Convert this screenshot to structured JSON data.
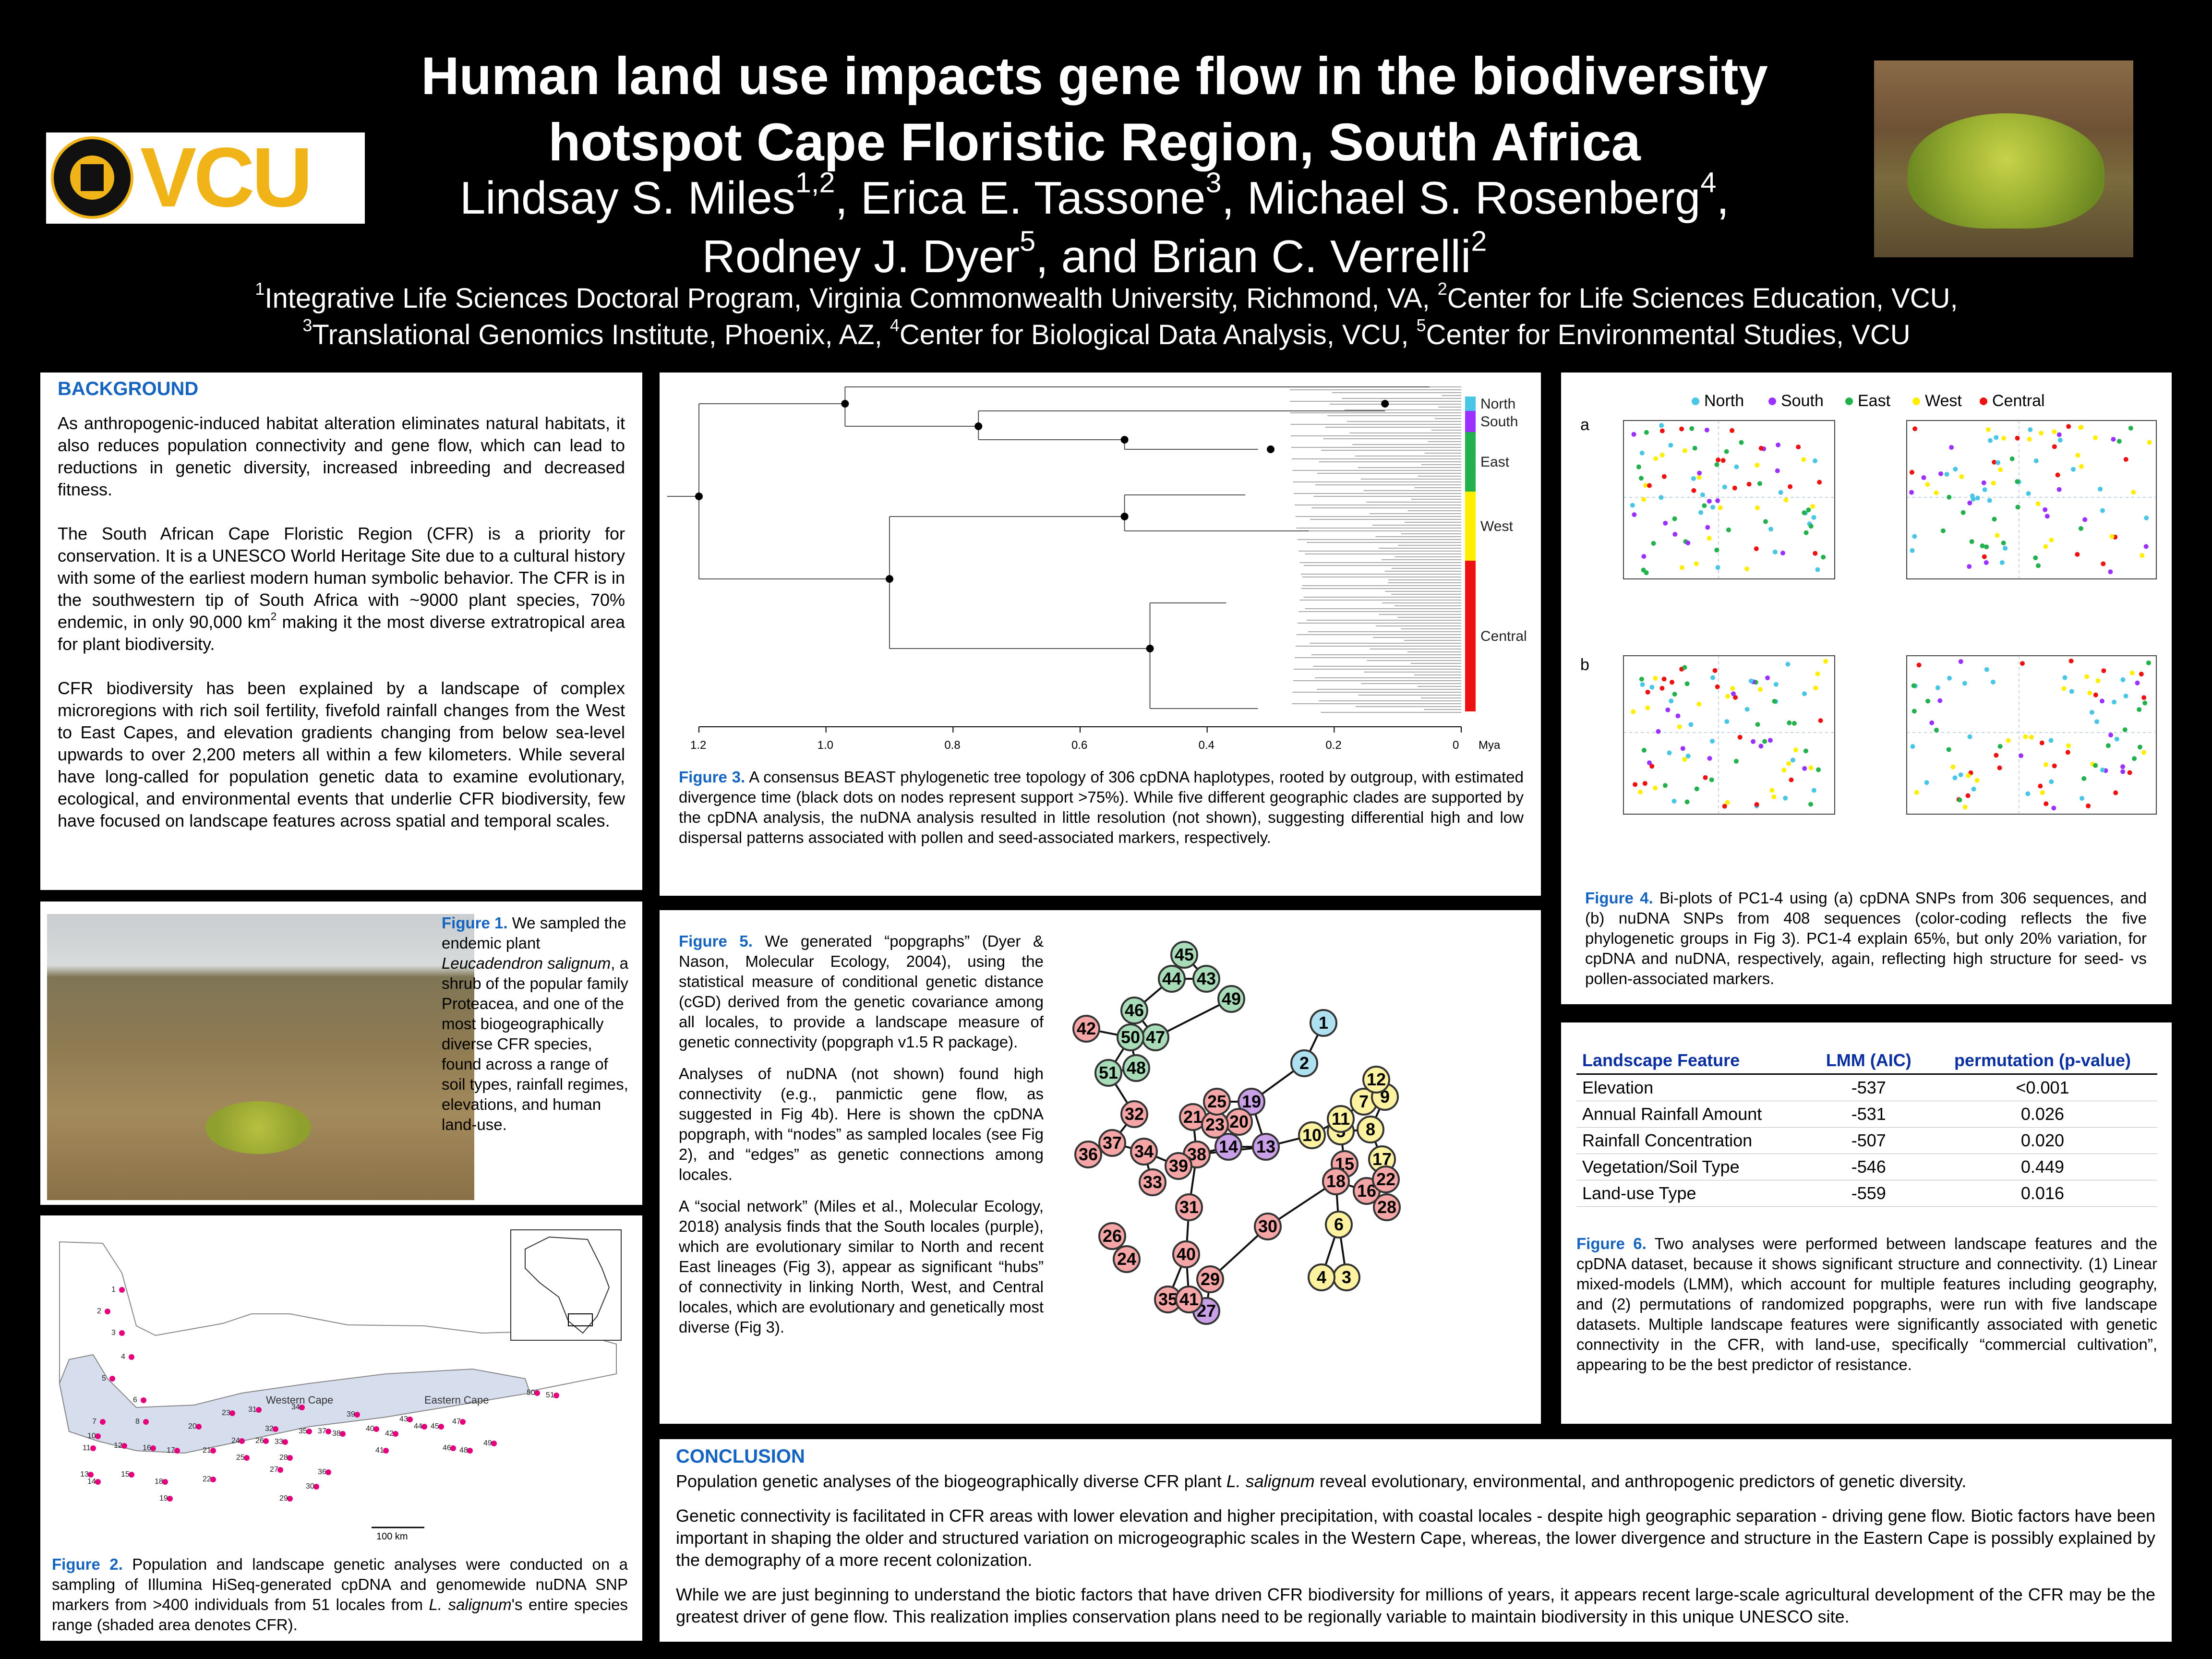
{
  "header": {
    "title_line1": "Human land use impacts gene flow in the biodiversity",
    "title_line2": "hotspot Cape Floristic Region, South Africa",
    "authors_line1": "Lindsay S. Miles1,2, Erica E. Tassone3, Michael S. Rosenberg4,",
    "authors_line2": "Rodney J. Dyer5, and Brian C. Verrelli2",
    "affil_line1": "1Integrative Life Sciences Doctoral Program, Virginia Commonwealth University, Richmond, VA, 2Center for Life Sciences Education, VCU,",
    "affil_line2": "3Translational Genomics Institute, Phoenix, AZ, 4Center for Biological Data Analysis, VCU, 5Center for Environmental Studies, VCU",
    "logo_text": "VCU"
  },
  "background": {
    "heading": "BACKGROUND",
    "p1": "As anthropogenic-induced habitat alteration eliminates natural habitats, it also reduces population connectivity and gene flow, which can lead to reductions in genetic diversity, increased inbreeding and decreased fitness.",
    "p2": "The South African Cape Floristic Region (CFR) is a priority for conservation. It is a UNESCO World Heritage Site due to a cultural history with some of the earliest modern human symbolic behavior. The CFR is in the southwestern tip of South Africa with ~9000 plant species, 70% endemic, in only 90,000 km2 making it the most diverse extratropical area for plant biodiversity.",
    "p3": "CFR biodiversity has been explained by a landscape of complex microregions with rich soil fertility, fivefold rainfall changes from the West to East Capes, and elevation gradients changing from below sea-level upwards to over 2,200 meters all within a few kilometers. While several have long-called for population genetic data to examine evolutionary, ecological, and environmental events that underlie CFR biodiversity, few have focused on landscape features across spatial and temporal scales."
  },
  "fig1": {
    "label": "Figure 1.",
    "text": " We sampled the endemic plant Leucadendron salignum, a shrub of the popular family Proteacea, and one of the most biogeographically diverse CFR species, found across a range of soil types, rainfall regimes, elevations, and human land-use."
  },
  "fig2": {
    "label": "Figure 2.",
    "text": " Population and landscape genetic analyses were conducted on a sampling of Illumina HiSeq-generated cpDNA and genomewide nuDNA SNP markers from >400 individuals from 51 locales from L. salignum's entire species range (shaded area denotes CFR).",
    "western_cape": "Western Cape",
    "eastern_cape": "Eastern Cape",
    "scale": "100 km"
  },
  "fig3": {
    "label": "Figure 3.",
    "text": " A consensus BEAST phylogenetic tree topology of 306 cpDNA haplotypes, rooted by outgroup, with estimated divergence time (black dots on nodes represent support >75%). While five different geographic clades are supported by the cpDNA analysis, the nuDNA analysis resulted in little resolution (not shown), suggesting differential high and low dispersal patterns associated with pollen and seed-associated markers, respectively.",
    "axis_ticks": [
      "1.2",
      "1.0",
      "0.8",
      "0.6",
      "0.4",
      "0.2",
      "0"
    ],
    "axis_unit": "Mya",
    "clades": [
      {
        "name": "North",
        "color": "#49c6e5"
      },
      {
        "name": "South",
        "color": "#9b30ff"
      },
      {
        "name": "East",
        "color": "#22b14c"
      },
      {
        "name": "West",
        "color": "#ffee00"
      },
      {
        "name": "Central",
        "color": "#ee1111"
      }
    ]
  },
  "fig4": {
    "label": "Figure 4.",
    "text": " Bi-plots of PC1-4 using (a) cpDNA SNPs from 306 sequences, and (b) nuDNA SNPs from 408 sequences (color-coding reflects the five phylogenetic groups in Fig 3). PC1-4 explain 65%, but only 20% variation, for cpDNA and nuDNA, respectively, again, reflecting high structure for seed- vs pollen-associated markers.",
    "legend": [
      "North",
      "South",
      "East",
      "West",
      "Central"
    ],
    "panel_a": "a",
    "panel_b": "b"
  },
  "fig5": {
    "label": "Figure 5.",
    "p1": " We generated “popgraphs” (Dyer & Nason, Molecular Ecology, 2004), using the statistical measure of conditional genetic distance (cGD) derived from the genetic covariance among all locales, to provide a landscape measure of genetic connectivity (popgraph v1.5 R package).",
    "p2": "Analyses of nuDNA (not shown) found high connectivity (e.g., panmictic gene flow, as suggested in Fig 4b). Here is shown the cpDNA popgraph, with “nodes” as sampled locales (see Fig 2), and “edges” as genetic connections among locales.",
    "p3": "A “social network” (Miles et al., Molecular Ecology, 2018) analysis finds that the South locales (purple), which are evolutionary similar to North and recent East lineages (Fig 3), appear as significant “hubs” of connectivity in linking North, West, and Central locales, which are evolutionary and genetically most diverse (Fig 3)."
  },
  "fig6": {
    "label": "Figure 6.",
    "text": " Two analyses were performed between landscape features and the cpDNA dataset, because it shows significant structure and connectivity. (1) Linear mixed-models (LMM), which account for multiple features including geography, and (2) permutations of randomized popgraphs, were run with five landscape datasets. Multiple landscape features were significantly associated with genetic connectivity in the CFR, with land-use, specifically “commercial cultivation”, appearing to be the best predictor of resistance.",
    "columns": [
      "Landscape Feature",
      "LMM (AIC)",
      "permutation (p-value)"
    ],
    "rows": [
      [
        "Elevation",
        "-537",
        "<0.001"
      ],
      [
        "Annual Rainfall Amount",
        "-531",
        "0.026"
      ],
      [
        "Rainfall Concentration",
        "-507",
        "0.020"
      ],
      [
        "Vegetation/Soil Type",
        "-546",
        "0.449"
      ],
      [
        "Land-use Type",
        "-559",
        "0.016"
      ]
    ]
  },
  "conclusion": {
    "heading": "CONCLUSION",
    "p1": "Population genetic analyses of the biogeographically diverse CFR plant L. salignum reveal evolutionary, environmental, and anthropogenic predictors of genetic diversity.",
    "p2": "Genetic connectivity is facilitated in CFR areas with lower elevation and higher precipitation, with coastal locales - despite high geographic separation - driving gene flow. Biotic factors have been important in shaping the older and structured variation on microgeographic scales in the Western Cape, whereas, the lower divergence and structure in the Eastern Cape is possibly explained by the demography of a more recent colonization.",
    "p3": "While we are just beginning to understand the biotic factors that have driven CFR biodiversity for millions of years, it appears recent large-scale agricultural development of the CFR may be the greatest driver of gene flow. This realization implies conservation plans need to be regionally variable to maintain biodiversity in this unique UNESCO site."
  }
}
